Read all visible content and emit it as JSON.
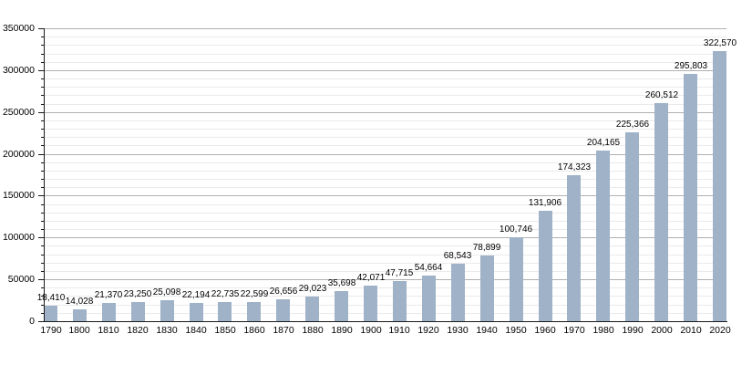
{
  "chart_data": {
    "type": "bar",
    "title": "",
    "xlabel": "",
    "ylabel": "",
    "categories": [
      "1790",
      "1800",
      "1810",
      "1820",
      "1830",
      "1840",
      "1850",
      "1860",
      "1870",
      "1880",
      "1890",
      "1900",
      "1910",
      "1920",
      "1930",
      "1940",
      "1950",
      "1960",
      "1970",
      "1980",
      "1990",
      "2000",
      "2010",
      "2020"
    ],
    "values": [
      18410,
      14028,
      21370,
      23250,
      25098,
      22194,
      22735,
      22599,
      26656,
      29023,
      35698,
      42071,
      47715,
      54664,
      68543,
      78899,
      100746,
      131906,
      174323,
      204165,
      225366,
      260512,
      295803,
      322570
    ],
    "value_labels": [
      "18,410",
      "14,028",
      "21,370",
      "23,250",
      "25,098",
      "22,194",
      "22,735",
      "22,599",
      "26,656",
      "29,023",
      "35,698",
      "42,071",
      "47,715",
      "54,664",
      "68,543",
      "78,899",
      "100,746",
      "131,906",
      "174,323",
      "204,165",
      "225,366",
      "260,512",
      "295,803",
      "322,570"
    ],
    "ylim": [
      0,
      350000
    ],
    "y_major_step": 50000,
    "y_minor_step": 10000,
    "y_tick_labels": [
      "0",
      "50000",
      "100000",
      "150000",
      "200000",
      "250000",
      "300000",
      "350000"
    ],
    "grid": true,
    "legend": "none",
    "colors": {
      "bar_fill": "#9fb2c8",
      "major_grid": "#b0b0b0",
      "minor_grid": "#eaeaea",
      "axis": "#1a1a1a",
      "text": "#000000"
    }
  }
}
